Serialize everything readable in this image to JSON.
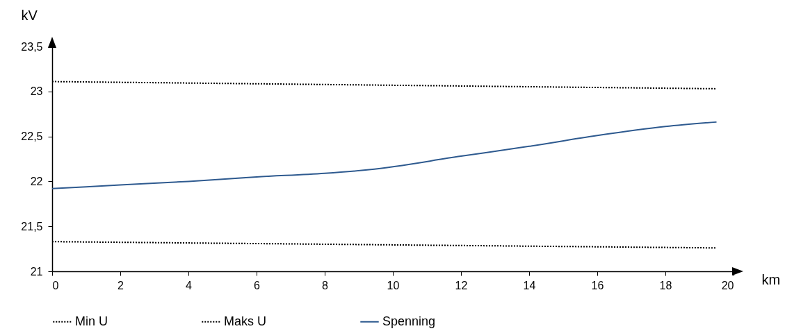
{
  "chart_data": {
    "type": "line",
    "xlabel": "km",
    "ylabel": "kV",
    "xlim": [
      0,
      20
    ],
    "xticks": [
      0,
      2,
      4,
      6,
      8,
      10,
      12,
      14,
      16,
      18,
      20
    ],
    "ylim": [
      21,
      23.5
    ],
    "yticks": [
      21,
      {
        "value": 21.5,
        "label": "21,5"
      },
      22,
      {
        "value": 22.5,
        "label": "22,5"
      },
      23,
      {
        "value": 23.5,
        "label": "23,5"
      }
    ],
    "grid": false,
    "legend": "bottom",
    "marker": "none",
    "series": [
      {
        "name": "Min U",
        "color": "#000000",
        "line_style": "dotted",
        "x": [
          0,
          19.5
        ],
        "values": [
          21.33,
          21.26
        ]
      },
      {
        "name": "Maks U",
        "color": "#000000",
        "line_style": "dotted",
        "x": [
          0,
          19.5
        ],
        "values": [
          23.11,
          23.03
        ]
      },
      {
        "name": "Spenning",
        "color": "#2e5a8f",
        "line_style": "solid",
        "x": [
          0,
          2,
          4,
          6,
          8,
          9.3,
          12,
          14,
          16,
          18,
          19.5
        ],
        "values": [
          21.92,
          21.96,
          22.0,
          22.05,
          22.09,
          22.13,
          22.28,
          22.39,
          22.51,
          22.61,
          22.66
        ]
      }
    ]
  }
}
